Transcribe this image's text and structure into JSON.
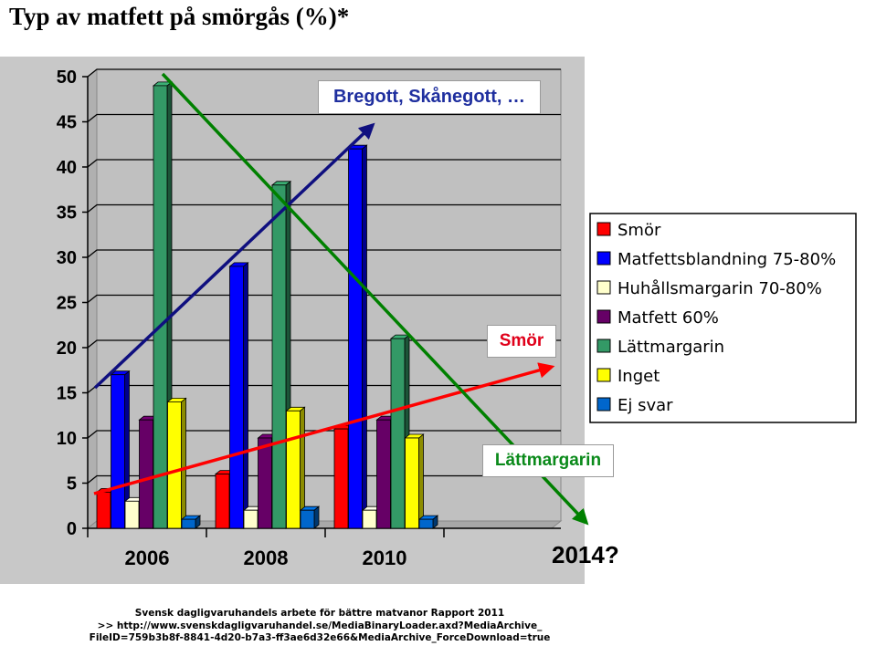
{
  "title": "Typ av matfett på smörgås (%)*",
  "chart_data": {
    "type": "bar",
    "title": "Typ av matfett på smörgås (%)*",
    "categories": [
      "2006",
      "2008",
      "2010"
    ],
    "extra_category": "2014?",
    "ylim": [
      0,
      50
    ],
    "yticks": [
      "0",
      "5",
      "10",
      "15",
      "20",
      "25",
      "30",
      "35",
      "40",
      "45",
      "50"
    ],
    "grid": true,
    "legend_position": "right",
    "series": [
      {
        "name": "Smör",
        "color": "#ff0000",
        "values": [
          4,
          6,
          11
        ]
      },
      {
        "name": "Matfettsblandning 75-80%",
        "color": "#0000ff",
        "values": [
          17,
          29,
          42
        ]
      },
      {
        "name": "Huhållsmargarin 70-80%",
        "color": "#ffffcc",
        "values": [
          3,
          2,
          2
        ]
      },
      {
        "name": "Matfett 60%",
        "color": "#660066",
        "values": [
          12,
          10,
          12
        ]
      },
      {
        "name": "Lättmargarin",
        "color": "#339966",
        "values": [
          49,
          38,
          21
        ]
      },
      {
        "name": "Inget",
        "color": "#ffff00",
        "values": [
          14,
          13,
          10
        ]
      },
      {
        "name": "Ej svar",
        "color": "#0066cc",
        "values": [
          1,
          2,
          1
        ]
      }
    ],
    "annotations": [
      {
        "text": "Bregott, Skånegott, …",
        "color": "#1f2f9f",
        "arrow_color": "#0f0f7f"
      },
      {
        "text": "Smör",
        "color": "#e0001a",
        "arrow_color": "#ff0000"
      },
      {
        "text": "Lättmargarin",
        "color": "#0a8a1a",
        "arrow_color": "#008000"
      }
    ]
  },
  "footer": {
    "line1": "Svensk dagligvaruhandels arbete för bättre matvanor Rapport 2011",
    "line2": ">> http://www.svenskdagligvaruhandel.se/MediaBinaryLoader.axd?MediaArchive_",
    "line3": "FileID=759b3b8f-8841-4d20-b7a3-ff3ae6d32e66&MediaArchive_ForceDownload=true"
  }
}
